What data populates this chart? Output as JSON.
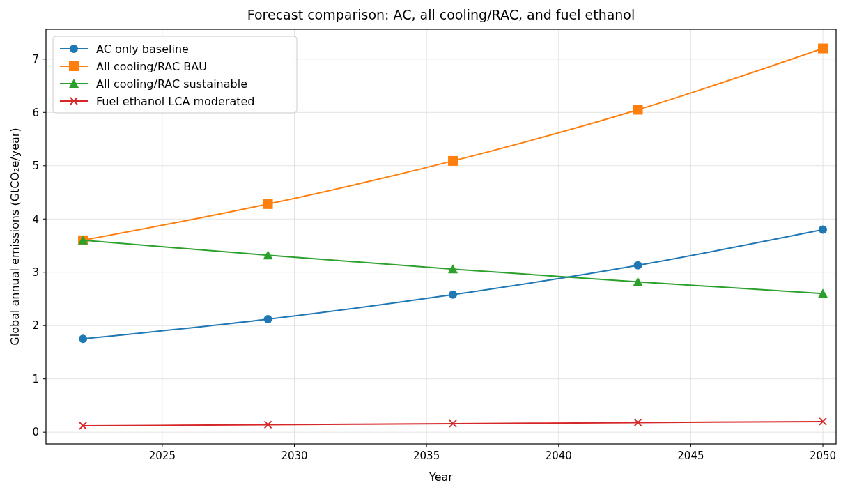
{
  "chart_data": {
    "type": "line",
    "title": "Forecast comparison: AC, all cooling/RAC, and fuel ethanol",
    "xlabel": "Year",
    "ylabel": "Global annual emissions (GtCO₂e/year)",
    "x": [
      2022,
      2029,
      2036,
      2043,
      2050
    ],
    "xlim": [
      2020.6,
      2050.5
    ],
    "xticks": [
      2025,
      2030,
      2035,
      2040,
      2045,
      2050
    ],
    "ylim": [
      -0.22,
      7.56
    ],
    "yticks": [
      0,
      1,
      2,
      3,
      4,
      5,
      6,
      7
    ],
    "grid": true,
    "legend": "top left",
    "line_style": "solid",
    "series": [
      {
        "name": "AC only baseline",
        "color": "#1f77b4",
        "marker": "circle",
        "values": [
          1.75,
          2.12,
          2.58,
          3.13,
          3.8
        ]
      },
      {
        "name": "All cooling/RAC BAU",
        "color": "#ff7f0e",
        "marker": "square",
        "values": [
          3.6,
          4.28,
          5.09,
          6.05,
          7.2
        ]
      },
      {
        "name": "All cooling/RAC sustainable",
        "color": "#2ca02c",
        "marker": "triangle",
        "values": [
          3.6,
          3.32,
          3.06,
          2.82,
          2.6
        ]
      },
      {
        "name": "Fuel ethanol LCA moderated",
        "color": "#d62728",
        "marker": "cross",
        "values": [
          0.12,
          0.14,
          0.16,
          0.18,
          0.2
        ]
      }
    ]
  }
}
